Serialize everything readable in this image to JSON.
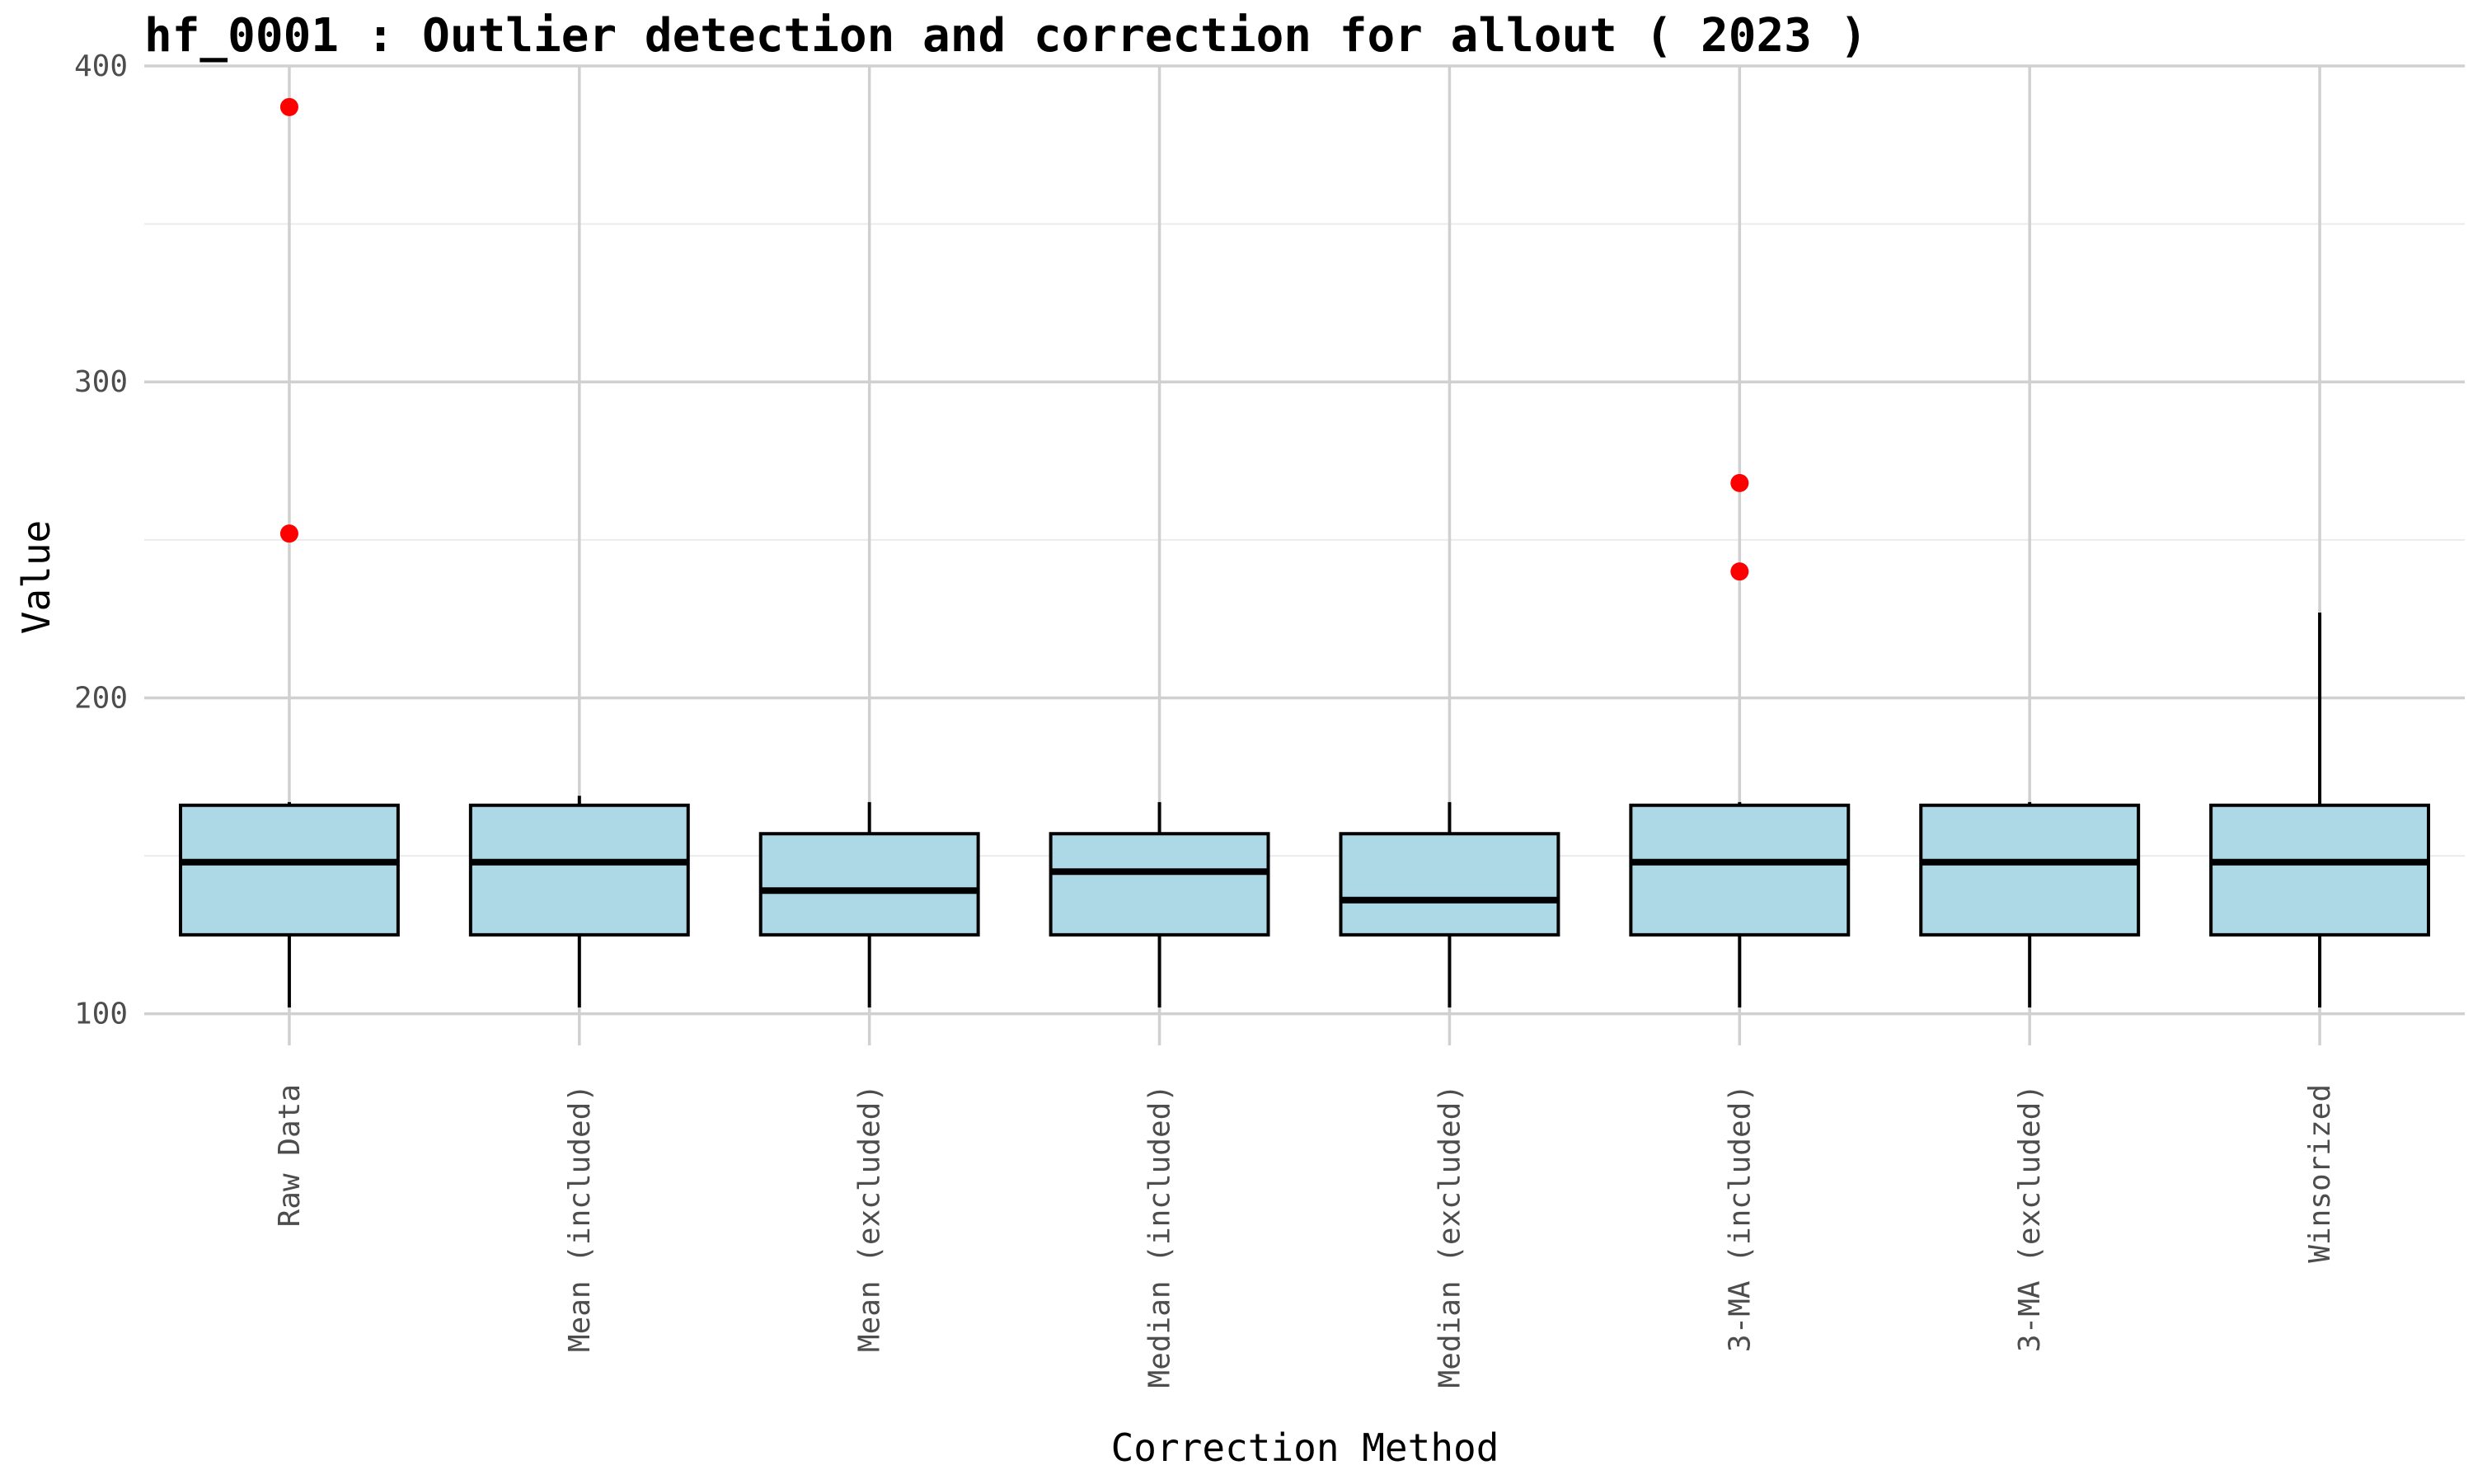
{
  "chart_data": {
    "type": "box",
    "title": "hf_0001 : Outlier detection and correction for allout ( 2023 )",
    "xlabel": "Correction Method",
    "ylabel": "Value",
    "ylim": [
      90,
      400
    ],
    "yticks": [
      100,
      200,
      300,
      400
    ],
    "grid": true,
    "legend": "none",
    "colors": {
      "box_fill": "#add8e6",
      "box_stroke": "#000000",
      "outlier": "#ff0000",
      "grid_major": "#d0d0d0",
      "grid_minor": "#ebebeb"
    },
    "categories": [
      "Raw Data",
      "Mean (included)",
      "Mean (excluded)",
      "Median (included)",
      "Median (excluded)",
      "3-MA (included)",
      "3-MA (excluded)",
      "Winsorized"
    ],
    "boxes": [
      {
        "whisker_low": 102,
        "q1": 125,
        "median": 148,
        "q3": 166,
        "whisker_high": 167,
        "outliers": [
          387,
          252
        ]
      },
      {
        "whisker_low": 102,
        "q1": 125,
        "median": 148,
        "q3": 166,
        "whisker_high": 169,
        "outliers": []
      },
      {
        "whisker_low": 102,
        "q1": 125,
        "median": 139,
        "q3": 157,
        "whisker_high": 167,
        "outliers": []
      },
      {
        "whisker_low": 102,
        "q1": 125,
        "median": 145,
        "q3": 157,
        "whisker_high": 167,
        "outliers": []
      },
      {
        "whisker_low": 102,
        "q1": 125,
        "median": 136,
        "q3": 157,
        "whisker_high": 167,
        "outliers": []
      },
      {
        "whisker_low": 102,
        "q1": 125,
        "median": 148,
        "q3": 166,
        "whisker_high": 167,
        "outliers": [
          268,
          240
        ]
      },
      {
        "whisker_low": 102,
        "q1": 125,
        "median": 148,
        "q3": 166,
        "whisker_high": 167,
        "outliers": []
      },
      {
        "whisker_low": 102,
        "q1": 125,
        "median": 148,
        "q3": 166,
        "whisker_high": 227,
        "outliers": []
      }
    ]
  }
}
